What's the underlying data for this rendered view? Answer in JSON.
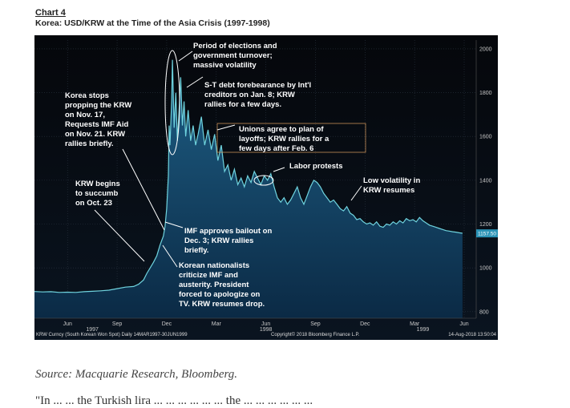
{
  "header": {
    "chart_number": "Chart 4",
    "title": "Korea: USD/KRW at the Time of the Asia Crisis (1997-1998)"
  },
  "chart_data": {
    "type": "area",
    "x_unit": "months since Apr 1997",
    "xlim": [
      0,
      26
    ],
    "ylim": [
      770,
      2040
    ],
    "yticks": [
      800,
      1000,
      1200,
      1400,
      1600,
      1800,
      2000
    ],
    "month_ticks": [
      {
        "label": "Jun",
        "x": 2
      },
      {
        "label": "Sep",
        "x": 5
      },
      {
        "label": "Dec",
        "x": 8
      },
      {
        "label": "Mar",
        "x": 11
      },
      {
        "label": "Jun",
        "x": 14
      },
      {
        "label": "Sep",
        "x": 17
      },
      {
        "label": "Dec",
        "x": 20
      },
      {
        "label": "Mar",
        "x": 23
      },
      {
        "label": "Jun",
        "x": 26
      }
    ],
    "year_labels": [
      {
        "label": "1997",
        "x": 3.5
      },
      {
        "label": "1998",
        "x": 14
      },
      {
        "label": "1999",
        "x": 23.5
      }
    ],
    "series": [
      {
        "color": "#6fd3de",
        "last_value_label": "1157.50",
        "last_value": 1157.5,
        "points": [
          [
            0,
            892
          ],
          [
            0.5,
            890
          ],
          [
            1,
            891
          ],
          [
            1.5,
            888
          ],
          [
            2,
            889
          ],
          [
            2.5,
            888
          ],
          [
            3,
            891
          ],
          [
            3.5,
            893
          ],
          [
            4,
            895
          ],
          [
            4.5,
            898
          ],
          [
            5,
            905
          ],
          [
            5.5,
            912
          ],
          [
            6,
            915
          ],
          [
            6.3,
            925
          ],
          [
            6.6,
            945
          ],
          [
            6.8,
            975
          ],
          [
            7,
            1000
          ],
          [
            7.2,
            1025
          ],
          [
            7.4,
            1055
          ],
          [
            7.6,
            1105
          ],
          [
            7.8,
            1145
          ],
          [
            7.9,
            1190
          ],
          [
            8,
            1270
          ],
          [
            8.1,
            1420
          ],
          [
            8.15,
            1650
          ],
          [
            8.2,
            1560
          ],
          [
            8.3,
            1760
          ],
          [
            8.35,
            1950
          ],
          [
            8.45,
            1640
          ],
          [
            8.55,
            1800
          ],
          [
            8.65,
            1580
          ],
          [
            8.75,
            1720
          ],
          [
            8.85,
            1870
          ],
          [
            8.95,
            1650
          ],
          [
            9.05,
            1760
          ],
          [
            9.15,
            1600
          ],
          [
            9.3,
            1720
          ],
          [
            9.45,
            1580
          ],
          [
            9.6,
            1650
          ],
          [
            9.75,
            1560
          ],
          [
            9.9,
            1610
          ],
          [
            10.1,
            1690
          ],
          [
            10.3,
            1560
          ],
          [
            10.5,
            1630
          ],
          [
            10.7,
            1540
          ],
          [
            10.9,
            1610
          ],
          [
            11.1,
            1490
          ],
          [
            11.3,
            1560
          ],
          [
            11.5,
            1440
          ],
          [
            11.7,
            1470
          ],
          [
            11.9,
            1400
          ],
          [
            12.1,
            1450
          ],
          [
            12.3,
            1380
          ],
          [
            12.5,
            1410
          ],
          [
            12.7,
            1370
          ],
          [
            12.9,
            1420
          ],
          [
            13.1,
            1390
          ],
          [
            13.3,
            1440
          ],
          [
            13.5,
            1410
          ],
          [
            13.7,
            1380
          ],
          [
            13.9,
            1420
          ],
          [
            14.1,
            1400
          ],
          [
            14.3,
            1430
          ],
          [
            14.5,
            1370
          ],
          [
            14.7,
            1320
          ],
          [
            14.9,
            1300
          ],
          [
            15.1,
            1320
          ],
          [
            15.3,
            1290
          ],
          [
            15.5,
            1310
          ],
          [
            15.7,
            1340
          ],
          [
            15.9,
            1370
          ],
          [
            16.1,
            1320
          ],
          [
            16.3,
            1290
          ],
          [
            16.5,
            1330
          ],
          [
            16.7,
            1370
          ],
          [
            16.9,
            1400
          ],
          [
            17.1,
            1390
          ],
          [
            17.3,
            1370
          ],
          [
            17.5,
            1340
          ],
          [
            17.7,
            1320
          ],
          [
            17.9,
            1300
          ],
          [
            18.1,
            1310
          ],
          [
            18.3,
            1290
          ],
          [
            18.5,
            1270
          ],
          [
            18.7,
            1260
          ],
          [
            18.9,
            1280
          ],
          [
            19.1,
            1250
          ],
          [
            19.3,
            1240
          ],
          [
            19.5,
            1220
          ],
          [
            19.7,
            1225
          ],
          [
            19.9,
            1210
          ],
          [
            20.1,
            1200
          ],
          [
            20.3,
            1205
          ],
          [
            20.5,
            1195
          ],
          [
            20.7,
            1210
          ],
          [
            20.9,
            1190
          ],
          [
            21.1,
            1185
          ],
          [
            21.3,
            1200
          ],
          [
            21.5,
            1195
          ],
          [
            21.7,
            1210
          ],
          [
            21.9,
            1200
          ],
          [
            22.1,
            1215
          ],
          [
            22.3,
            1205
          ],
          [
            22.5,
            1225
          ],
          [
            22.7,
            1215
          ],
          [
            22.9,
            1220
          ],
          [
            23.1,
            1210
          ],
          [
            23.3,
            1230
          ],
          [
            23.5,
            1215
          ],
          [
            23.7,
            1205
          ],
          [
            23.9,
            1195
          ],
          [
            24.1,
            1190
          ],
          [
            24.3,
            1185
          ],
          [
            24.5,
            1180
          ],
          [
            24.7,
            1175
          ],
          [
            24.9,
            1170
          ],
          [
            25.1,
            1168
          ],
          [
            25.3,
            1165
          ],
          [
            25.5,
            1163
          ],
          [
            25.7,
            1160
          ],
          [
            25.9,
            1158
          ]
        ]
      }
    ],
    "annotations": [
      {
        "lines": [
          "Period of elections and",
          "government turnover;",
          "massive volatility"
        ]
      },
      {
        "lines": [
          "S-T debt forebearance by Int'l",
          "creditors on Jan. 8; KRW",
          "rallies for a few days."
        ]
      },
      {
        "lines": [
          "Unions agree to plan of",
          "layoffs; KRW rallies for a",
          "few days after Feb. 6"
        ]
      },
      {
        "lines": [
          "Labor protests"
        ]
      },
      {
        "lines": [
          "Low volatility in",
          "KRW resumes"
        ]
      },
      {
        "lines": [
          "Korea stops",
          "propping the KRW",
          "on Nov. 17,",
          "Requests IMF Aid",
          "on Nov. 21. KRW",
          "rallies briefly."
        ]
      },
      {
        "lines": [
          "KRW begins",
          "to succumb",
          "on Oct. 23"
        ]
      },
      {
        "lines": [
          "IMF approves bailout on",
          "Dec. 3; KRW rallies",
          "briefly."
        ]
      },
      {
        "lines": [
          "Korean nationalists",
          "criticize IMF and",
          "austerity. President",
          "forced to apologize on",
          "TV. KRW resumes drop."
        ]
      }
    ],
    "footer_left": "KRW Curncy (South Korean Won Spot)  Daily 14MAR1997-30JUN1999",
    "footer_center": "Copyright© 2018 Bloomberg Finance L.P.",
    "footer_right": "14-Aug-2018 13:50:04"
  },
  "source": "Source: Macquarie Research, Bloomberg.",
  "trailing_text": "\"In ... ... the Turkish lira ... ... ... ... ... ... the ... ... ... ... ... ..."
}
